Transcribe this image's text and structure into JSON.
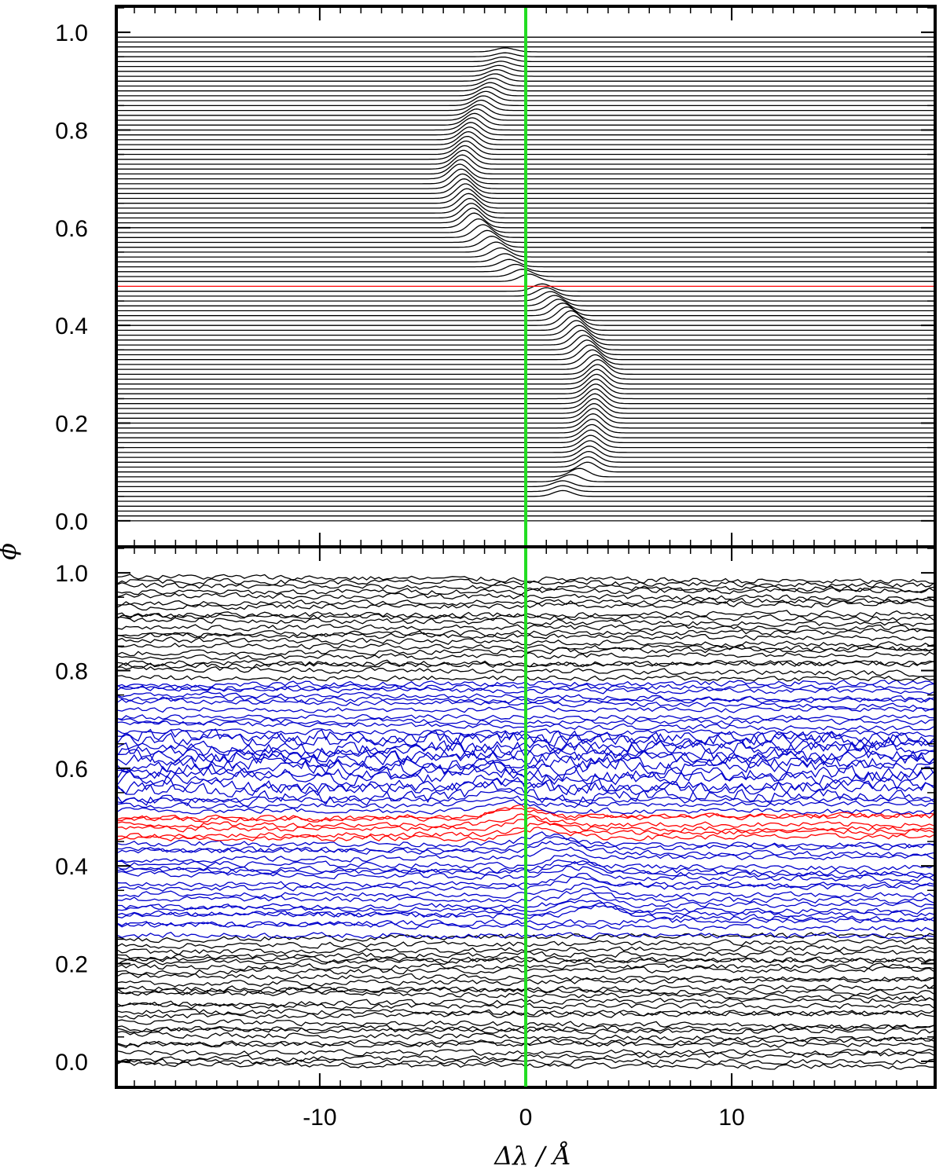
{
  "chart_data": [
    {
      "type": "line",
      "panel": "top",
      "description_of_traces": "stacked trailed spectra, one trace per orbital phase",
      "x_range": [
        -19.8,
        19.8
      ],
      "y_range": [
        -0.05,
        1.05
      ],
      "y_ticks": [
        "0.0",
        "0.2",
        "0.4",
        "0.6",
        "0.8",
        "1.0"
      ],
      "x_ticks": [],
      "y_tick_values": [
        0.0,
        0.2,
        0.4,
        0.6,
        0.8,
        1.0
      ],
      "phase_start": 0.0,
      "phase_end": 0.99,
      "trace_count": 100,
      "highlight_phase": 0.48,
      "reference_line_x": 0,
      "emission_track": [
        {
          "phase": 0.07,
          "x": 1.8,
          "height": 0.012
        },
        {
          "phase": 0.1,
          "x": 3.0,
          "height": 0.02
        },
        {
          "phase": 0.2,
          "x": 3.3,
          "height": 0.03
        },
        {
          "phase": 0.3,
          "x": 3.5,
          "height": 0.03
        },
        {
          "phase": 0.4,
          "x": 2.2,
          "height": 0.03
        },
        {
          "phase": 0.47,
          "x": 0.8,
          "height": 0.015
        },
        {
          "phase": 0.52,
          "x": -0.8,
          "height": 0.015
        },
        {
          "phase": 0.6,
          "x": -2.5,
          "height": 0.03
        },
        {
          "phase": 0.7,
          "x": -3.2,
          "height": 0.03
        },
        {
          "phase": 0.8,
          "x": -2.6,
          "height": 0.025
        },
        {
          "phase": 0.9,
          "x": -1.5,
          "height": 0.015
        },
        {
          "phase": 0.95,
          "x": -1.0,
          "height": 0.008
        }
      ],
      "colors": {
        "trace": "#000000",
        "highlight": "#ff0000",
        "reference": "#22dd22"
      }
    },
    {
      "type": "line",
      "panel": "bottom",
      "description_of_traces": "stacked residual spectra with noise, one trace per orbital phase",
      "x_range": [
        -19.8,
        19.8
      ],
      "y_range": [
        -0.05,
        1.05
      ],
      "y_ticks": [
        "0.0",
        "0.2",
        "0.4",
        "0.6",
        "0.8",
        "1.0"
      ],
      "y_tick_values": [
        0.0,
        0.2,
        0.4,
        0.6,
        0.8,
        1.0
      ],
      "x_ticks": [
        "-10",
        "0",
        "10"
      ],
      "x_tick_values": [
        -10,
        0,
        10
      ],
      "groups": [
        {
          "phase_from": 0.0,
          "phase_to": 0.27,
          "color": "#000000"
        },
        {
          "phase_from": 0.27,
          "phase_to": 0.46,
          "color": "#0000cc"
        },
        {
          "phase_from": 0.46,
          "phase_to": 0.52,
          "color": "#ff0000"
        },
        {
          "phase_from": 0.52,
          "phase_to": 0.79,
          "color": "#0000cc"
        },
        {
          "phase_from": 0.79,
          "phase_to": 1.0,
          "color": "#000000"
        }
      ],
      "reference_line_x": 0
    }
  ],
  "axes": {
    "ylabel": "ϕ",
    "xlabel": "Δλ / Å"
  }
}
